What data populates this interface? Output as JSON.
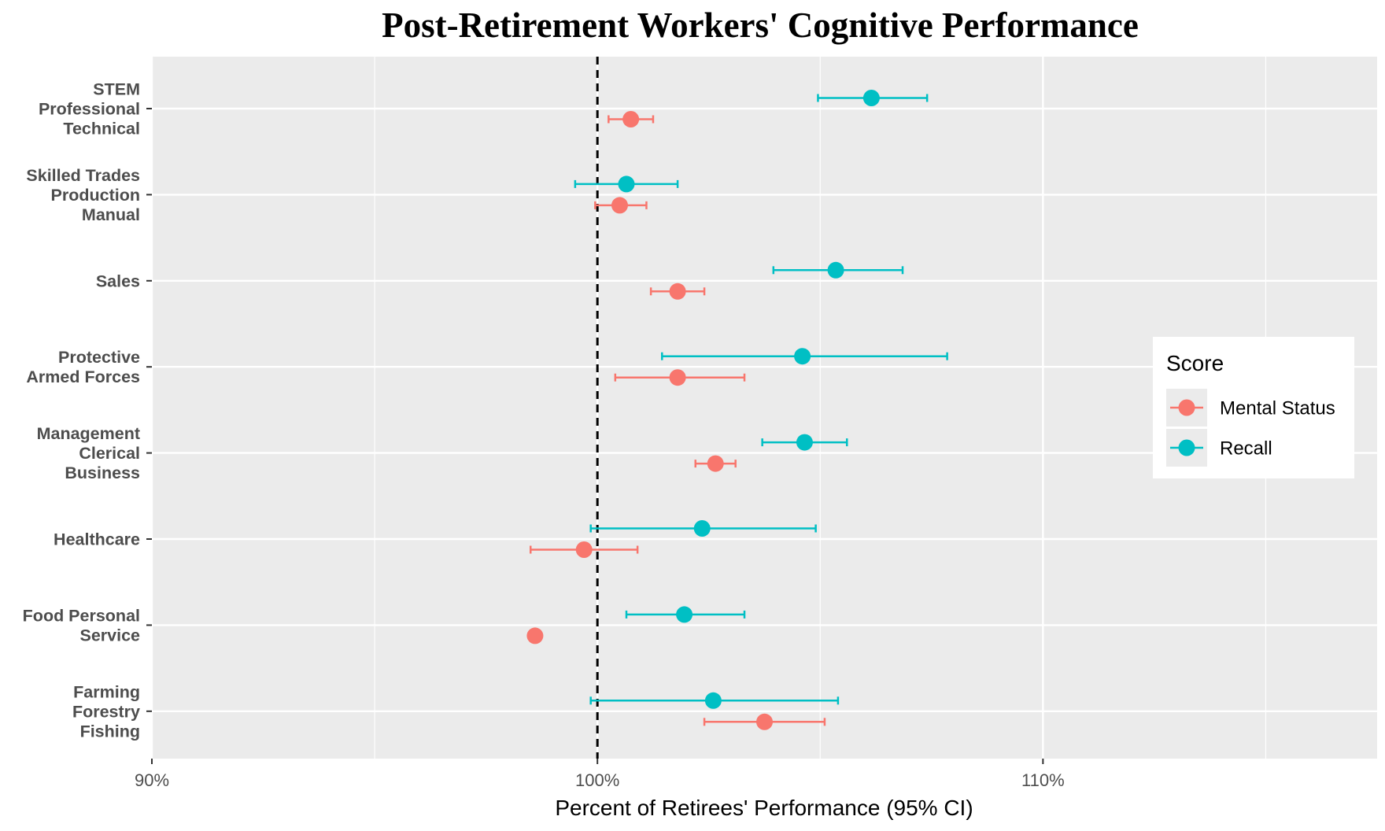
{
  "chart_data": {
    "type": "dot-errorbar",
    "title": "Post-Retirement Workers' Cognitive Performance",
    "xlabel": "Percent of Retirees' Performance (95% CI)",
    "ylabel": "",
    "xlim": [
      90,
      117.5
    ],
    "x_ticks": [
      90,
      100,
      110
    ],
    "x_tick_labels": [
      "90%",
      "100%",
      "110%"
    ],
    "reference_line": 100,
    "grid": true,
    "categories": [
      [
        "STEM",
        "Professional",
        "Technical"
      ],
      [
        "Skilled Trades",
        "Production",
        "Manual"
      ],
      [
        "Sales"
      ],
      [
        "Protective",
        "Armed Forces"
      ],
      [
        "Management",
        "Clerical",
        "Business"
      ],
      [
        "Healthcare"
      ],
      [
        "Food Personal",
        "Service"
      ],
      [
        "Farming",
        "Forestry",
        "Fishing"
      ]
    ],
    "series": [
      {
        "name": "Mental Status",
        "color": "#F8766D",
        "values": [
          100.75,
          100.5,
          101.8,
          101.8,
          102.65,
          99.7,
          98.6,
          103.75
        ],
        "ci_low": [
          100.25,
          99.95,
          101.2,
          100.4,
          102.2,
          98.5,
          null,
          102.4
        ],
        "ci_high": [
          101.25,
          101.1,
          102.4,
          103.3,
          103.1,
          100.9,
          null,
          105.1
        ]
      },
      {
        "name": "Recall",
        "color": "#00BFC4",
        "values": [
          106.15,
          100.65,
          105.35,
          104.6,
          104.65,
          102.35,
          101.95,
          102.6
        ],
        "ci_low": [
          104.95,
          99.5,
          103.95,
          101.45,
          103.7,
          99.85,
          100.65,
          99.85
        ],
        "ci_high": [
          107.4,
          101.8,
          106.85,
          107.85,
          105.6,
          104.9,
          103.3,
          105.4
        ]
      }
    ],
    "legend": {
      "title": "Score",
      "position": "right"
    }
  }
}
